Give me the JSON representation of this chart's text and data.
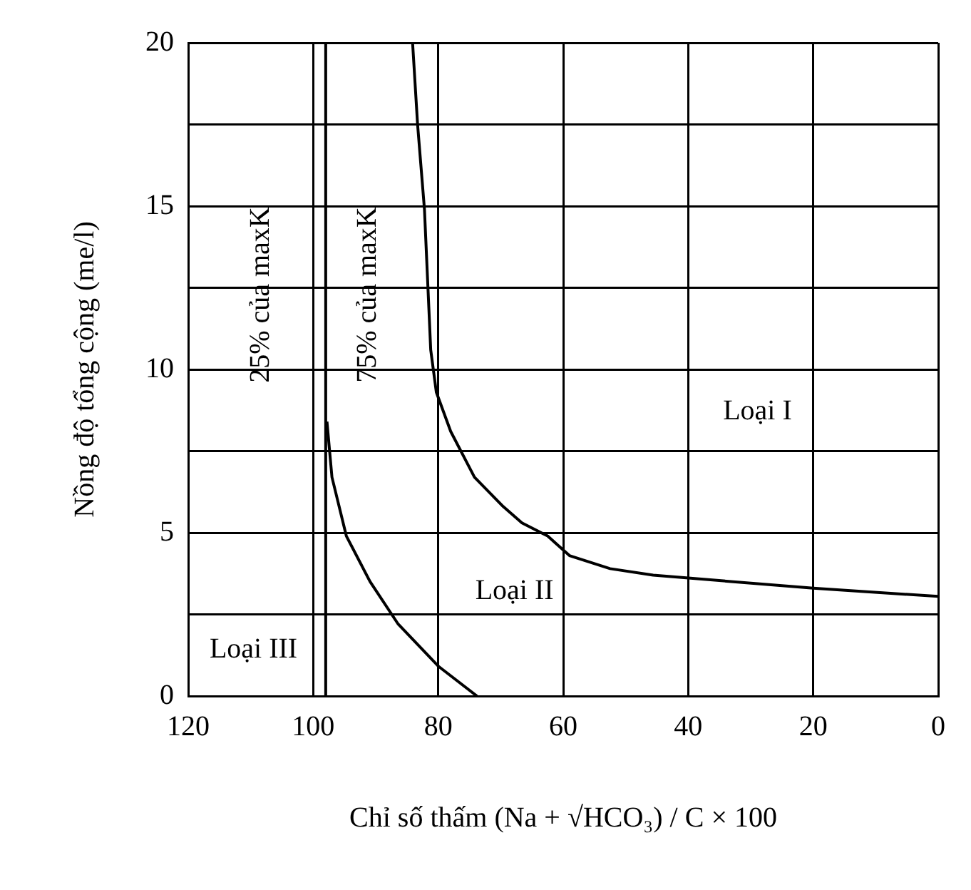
{
  "chart_data": {
    "type": "line",
    "xlabel": "Chỉ số thấm (Na + √HCO₃) / C × 100",
    "ylabel": "Nồng độ tổng cộng (me/l)",
    "xlim": [
      120,
      0
    ],
    "xticks": [
      120,
      100,
      80,
      60,
      40,
      20,
      0
    ],
    "ylim": [
      0,
      20
    ],
    "yticks": [
      0,
      {
        "value": 2.5,
        "label": null
      },
      5,
      {
        "value": 7.5,
        "label": null
      },
      10,
      {
        "value": 12.5,
        "label": null
      },
      15,
      {
        "value": 17.5,
        "label": null
      },
      20
    ],
    "series": [
      {
        "color": "#000000",
        "x": [
          97.8,
          97.0,
          94.7,
          90.9,
          86.4,
          79.9,
          73.8
        ],
        "values": [
          8.4,
          6.7,
          4.9,
          3.5,
          2.2,
          0.9,
          0
        ]
      },
      {
        "color": "#000000",
        "x": [
          84.1,
          83.3,
          82.2,
          81.2,
          80.3,
          78.0,
          74.2,
          69.6,
          66.6,
          62.5,
          59.0,
          52.5,
          45.6,
          20.0,
          0
        ],
        "values": [
          20,
          17.5,
          14.9,
          10.6,
          9.3,
          8.1,
          6.7,
          5.8,
          5.3,
          4.9,
          4.3,
          3.9,
          3.7,
          3.3,
          3.05
        ]
      }
    ],
    "ref_lines": [
      {
        "axis": "x",
        "value": 98,
        "color": "#000000"
      }
    ],
    "annotations": [
      "Loại I",
      "Loại II",
      "Loại III",
      "25% của maxK",
      "75% của maxK"
    ],
    "grid": true,
    "legend": false,
    "marker": "none",
    "line_style": "solid"
  }
}
